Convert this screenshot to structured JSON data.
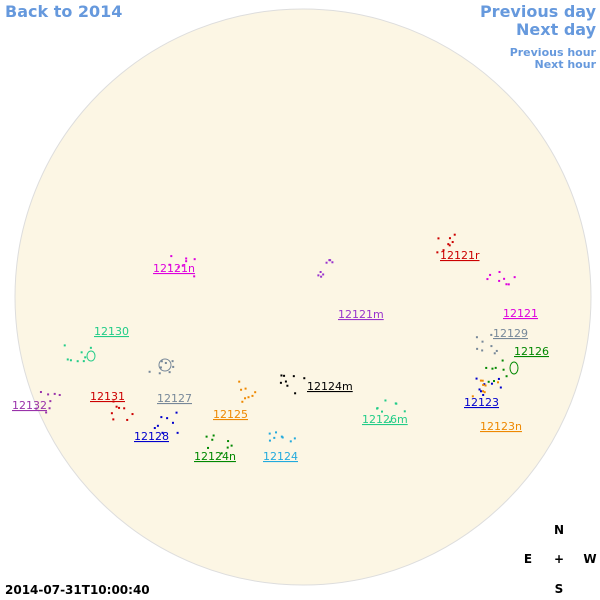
{
  "nav": {
    "back": "Back to 2014",
    "previous_day": "Previous day",
    "next_day": "Next day",
    "previous_hour": "Previous hour",
    "next_hour": "Next hour"
  },
  "timestamp": "2014-07-31T10:00:40",
  "compass": {
    "north": "N",
    "east": "E",
    "center": "+",
    "west": "W",
    "south": "S"
  },
  "regions": [
    {
      "label": "12121r",
      "color": "#cc0000"
    },
    {
      "label": "12121n",
      "color": "#dd00dd"
    },
    {
      "label": "12121m",
      "color": "#9933cc"
    },
    {
      "label": "12121",
      "color": "#dd00dd"
    },
    {
      "label": "12129",
      "color": "#778899"
    },
    {
      "label": "12126",
      "color": "#008800"
    },
    {
      "label": "12130",
      "color": "#22cc88"
    },
    {
      "label": "12124m",
      "color": "#000000"
    },
    {
      "label": "12132",
      "color": "#9933aa"
    },
    {
      "label": "12131",
      "color": "#cc0000"
    },
    {
      "label": "12127",
      "color": "#778899"
    },
    {
      "label": "12125",
      "color": "#ee8800"
    },
    {
      "label": "12126m",
      "color": "#22cc88"
    },
    {
      "label": "12123",
      "color": "#0000cc"
    },
    {
      "label": "12123n",
      "color": "#ee8800"
    },
    {
      "label": "12128",
      "color": "#0000cc"
    },
    {
      "label": "12124n",
      "color": "#008800"
    },
    {
      "label": "12124",
      "color": "#22aadd"
    }
  ]
}
